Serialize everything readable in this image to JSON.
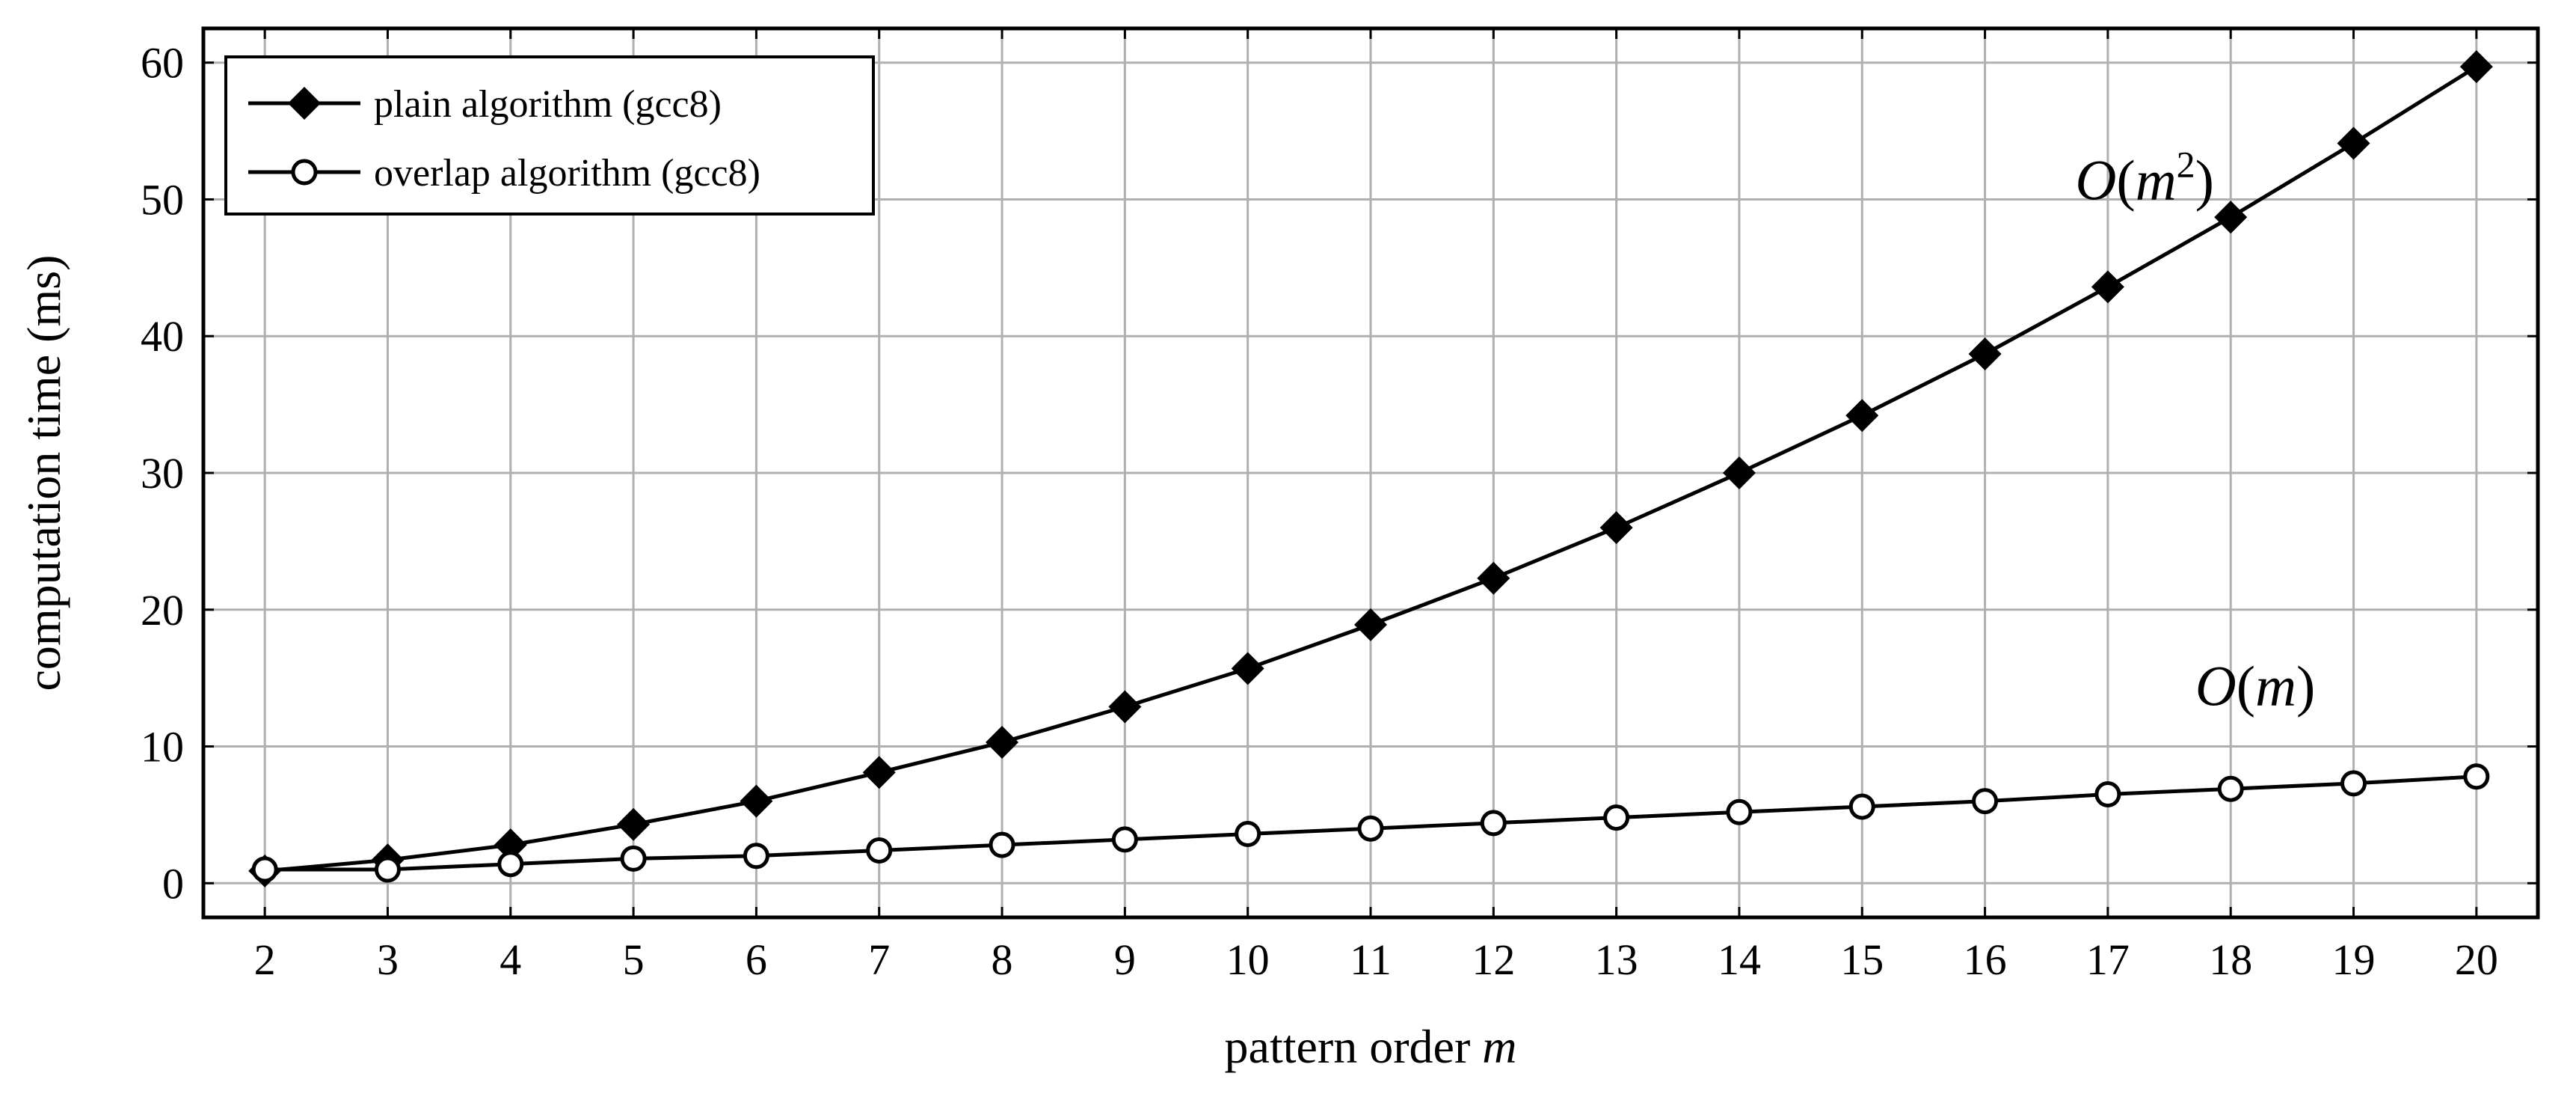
{
  "chart_data": {
    "type": "line",
    "xlabel": "pattern order",
    "xlabel_var": "m",
    "ylabel": "computation time (ms)",
    "x": [
      2,
      3,
      4,
      5,
      6,
      7,
      8,
      9,
      10,
      11,
      12,
      13,
      14,
      15,
      16,
      17,
      18,
      19,
      20
    ],
    "xlim": [
      1.5,
      20.5
    ],
    "ylim": [
      -2.5,
      62.5
    ],
    "yticks": [
      0,
      10,
      20,
      30,
      40,
      50,
      60
    ],
    "grid": true,
    "legend_position": "top-left",
    "series": [
      {
        "name": "plain algorithm (gcc8)",
        "marker": "filled-diamond",
        "values": [
          0.9,
          1.7,
          2.8,
          4.3,
          6.0,
          8.1,
          10.3,
          12.9,
          15.7,
          18.9,
          22.3,
          26.0,
          30.0,
          34.2,
          38.7,
          43.6,
          48.7,
          54.1,
          59.7
        ]
      },
      {
        "name": "overlap algorithm (gcc8)",
        "marker": "open-circle",
        "values": [
          1.0,
          1.0,
          1.4,
          1.8,
          2.0,
          2.4,
          2.8,
          3.2,
          3.6,
          4.0,
          4.4,
          4.8,
          5.2,
          5.6,
          6.0,
          6.5,
          6.9,
          7.3,
          7.8
        ]
      }
    ],
    "annotations": [
      {
        "text": "O(m²)",
        "base": "O(",
        "var": "m",
        "sup": "2",
        "close": ")",
        "x": 17.3,
        "y": 50.0
      },
      {
        "text": "O(m)",
        "base": "O(",
        "var": "m",
        "sup": "",
        "close": ")",
        "x": 18.2,
        "y": 13.0
      }
    ]
  }
}
